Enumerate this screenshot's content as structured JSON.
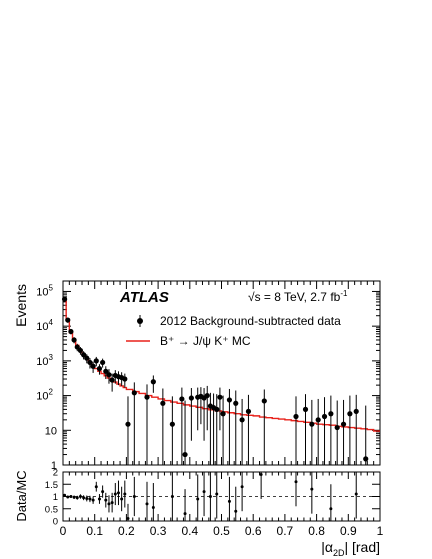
{
  "chart_data": [
    {
      "type": "scatter",
      "panel": "main",
      "ylabel": "Events",
      "yscale": "log",
      "ylim": [
        1,
        200000
      ],
      "xlim": [
        0,
        1
      ],
      "y_tick_labels": [
        {
          "value": 1,
          "base": "1",
          "exp": ""
        },
        {
          "value": 10,
          "base": "10",
          "exp": ""
        },
        {
          "value": 100,
          "base": "10",
          "exp": "2"
        },
        {
          "value": 1000,
          "base": "10",
          "exp": "3"
        },
        {
          "value": 10000,
          "base": "10",
          "exp": "4"
        },
        {
          "value": 100000,
          "base": "10",
          "exp": "5"
        }
      ],
      "annotations": {
        "experiment": "ATLAS",
        "energy": "√s = 8 TeV, 2.7 fb",
        "energy_sup": "-1"
      },
      "legend": {
        "placement": "top-right",
        "data_label": "2012 Background-subtracted data",
        "mc_label": "B⁺ → J/ψ K⁺ MC"
      },
      "series": [
        {
          "name": "2012 Background-subtracted data",
          "kind": "points",
          "x": [
            0.005,
            0.015,
            0.025,
            0.035,
            0.045,
            0.055,
            0.065,
            0.075,
            0.085,
            0.095,
            0.105,
            0.115,
            0.125,
            0.135,
            0.145,
            0.155,
            0.165,
            0.175,
            0.185,
            0.195,
            0.205,
            0.225,
            0.265,
            0.285,
            0.315,
            0.345,
            0.375,
            0.385,
            0.405,
            0.425,
            0.435,
            0.445,
            0.455,
            0.465,
            0.475,
            0.485,
            0.495,
            0.505,
            0.525,
            0.545,
            0.565,
            0.585,
            0.635,
            0.735,
            0.765,
            0.785,
            0.805,
            0.825,
            0.845,
            0.865,
            0.885,
            0.905,
            0.925,
            0.955
          ],
          "y": [
            60000,
            15000,
            7000,
            4000,
            2500,
            2000,
            1500,
            1200,
            900,
            700,
            1000,
            600,
            900,
            500,
            400,
            280,
            380,
            350,
            330,
            300,
            15,
            120,
            90,
            250,
            60,
            15,
            80,
            2,
            85,
            90,
            95,
            85,
            100,
            50,
            45,
            40,
            90,
            30,
            75,
            60,
            20,
            35,
            70,
            25,
            40,
            15,
            20,
            25,
            30,
            12,
            15,
            30,
            35,
            1.5
          ],
          "yerr": [
            6000,
            2500,
            1200,
            800,
            600,
            500,
            400,
            350,
            300,
            250,
            300,
            200,
            260,
            200,
            180,
            150,
            160,
            150,
            140,
            130,
            80,
            120,
            120,
            130,
            100,
            80,
            90,
            70,
            80,
            80,
            80,
            80,
            90,
            70,
            70,
            70,
            80,
            70,
            80,
            80,
            60,
            70,
            80,
            70,
            70,
            60,
            60,
            65,
            70,
            60,
            60,
            70,
            70,
            50
          ]
        },
        {
          "name": "B⁺ → J/ψ K⁺ MC",
          "kind": "step",
          "color": "#e8211a",
          "bin_edges": [
            0,
            0.01,
            0.02,
            0.03,
            0.04,
            0.05,
            0.06,
            0.07,
            0.08,
            0.09,
            0.1,
            0.11,
            0.12,
            0.13,
            0.14,
            0.15,
            0.16,
            0.17,
            0.18,
            0.19,
            0.2,
            0.22,
            0.24,
            0.26,
            0.28,
            0.3,
            0.32,
            0.34,
            0.36,
            0.38,
            0.4,
            0.42,
            0.44,
            0.46,
            0.48,
            0.5,
            0.52,
            0.54,
            0.56,
            0.58,
            0.6,
            0.62,
            0.64,
            0.66,
            0.68,
            0.7,
            0.72,
            0.74,
            0.76,
            0.78,
            0.8,
            0.82,
            0.84,
            0.86,
            0.88,
            0.9,
            0.92,
            0.94,
            0.96,
            0.98,
            1.0
          ],
          "values": [
            55000,
            16000,
            6500,
            4000,
            2800,
            2000,
            1500,
            1150,
            900,
            720,
            600,
            500,
            430,
            370,
            320,
            280,
            245,
            215,
            190,
            170,
            150,
            130,
            115,
            100,
            90,
            80,
            72,
            65,
            60,
            54,
            50,
            46,
            42,
            39,
            36,
            34,
            32,
            30,
            28,
            27,
            26,
            24,
            23,
            22,
            21,
            20,
            19,
            18,
            17,
            16,
            15,
            14.5,
            14,
            13,
            12.5,
            12,
            11.5,
            11,
            10.5,
            9.5
          ]
        }
      ]
    },
    {
      "type": "scatter",
      "panel": "ratio",
      "ylabel": "Data/MC",
      "xlabel": "|α",
      "xlabel_sub": "2D",
      "xlabel_tail": "| [rad]",
      "ylim": [
        0,
        2
      ],
      "xlim": [
        0,
        1
      ],
      "y_tick_labels": [
        "0",
        "0.5",
        "1",
        "1.5",
        "2"
      ],
      "x_tick_labels": [
        "0",
        "0.1",
        "0.2",
        "0.3",
        "0.4",
        "0.5",
        "0.6",
        "0.7",
        "0.8",
        "0.9",
        "1"
      ],
      "reference_line": 1,
      "series": [
        {
          "name": "Data/MC",
          "x": [
            0.005,
            0.015,
            0.025,
            0.035,
            0.045,
            0.055,
            0.065,
            0.075,
            0.085,
            0.095,
            0.105,
            0.115,
            0.125,
            0.135,
            0.145,
            0.155,
            0.165,
            0.175,
            0.185,
            0.195,
            0.205,
            0.225,
            0.265,
            0.285,
            0.345,
            0.385,
            0.425,
            0.445,
            0.465,
            0.485,
            0.525,
            0.545,
            0.565,
            0.625,
            0.735,
            0.785,
            0.845,
            0.925
          ],
          "y": [
            1.05,
            0.98,
            1.0,
            0.97,
            0.95,
            1.0,
            0.95,
            0.92,
            0.9,
            0.85,
            1.4,
            0.9,
            1.2,
            0.85,
            0.7,
            0.75,
            1.1,
            1.15,
            0.9,
            1.1,
            0.1,
            1.0,
            0.7,
            0.55,
            1.0,
            0.3,
            0.9,
            1.2,
            1.0,
            1.1,
            0.8,
            0.4,
            1.4,
            1.9,
            1.6,
            1.3,
            0.5,
            1.1
          ],
          "yerr": [
            0.05,
            0.05,
            0.06,
            0.07,
            0.08,
            0.09,
            0.1,
            0.12,
            0.13,
            0.15,
            0.2,
            0.2,
            0.25,
            0.3,
            0.35,
            0.4,
            0.45,
            0.5,
            0.5,
            0.55,
            0.6,
            0.8,
            0.9,
            1.0,
            1.0,
            1.0,
            1.0,
            1.0,
            1.0,
            1.0,
            1.0,
            1.0,
            1.0,
            1.0,
            1.0,
            1.0,
            1.0,
            1.0
          ]
        }
      ]
    }
  ]
}
